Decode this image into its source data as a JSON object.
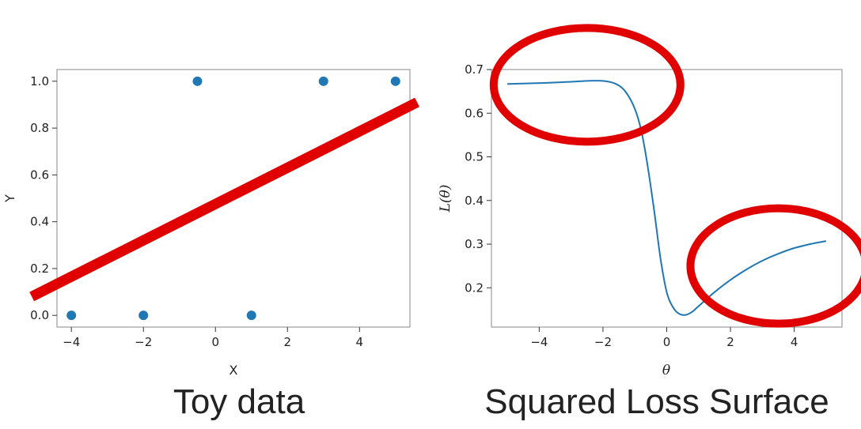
{
  "colors": {
    "series": "#1f77b4",
    "annotation": "#e00000",
    "frame": "#8a8a8a",
    "background": "#ffffff"
  },
  "chart_data": [
    {
      "type": "scatter",
      "caption": "Toy data",
      "xlabel": "X",
      "ylabel": "Y",
      "xlim": [
        -4.4,
        5.4
      ],
      "ylim": [
        -0.05,
        1.05
      ],
      "xticks": [
        -4,
        -2,
        0,
        2,
        4
      ],
      "xtick_labels": [
        "−4",
        "−2",
        "0",
        "2",
        "4"
      ],
      "yticks": [
        0.0,
        0.2,
        0.4,
        0.6,
        0.8,
        1.0
      ],
      "ytick_labels": [
        "0.0",
        "0.2",
        "0.4",
        "0.6",
        "0.8",
        "1.0"
      ],
      "points": [
        {
          "x": -4,
          "y": 0
        },
        {
          "x": -2,
          "y": 0
        },
        {
          "x": -0.5,
          "y": 1
        },
        {
          "x": 1,
          "y": 0
        },
        {
          "x": 3,
          "y": 1
        },
        {
          "x": 5,
          "y": 1
        }
      ],
      "annotation_line": {
        "x": [
          -5.1,
          5.6
        ],
        "y": 0.08,
        "y_end": 0.91
      }
    },
    {
      "type": "line",
      "caption": "Squared Loss Surface",
      "xlabel": "θ",
      "ylabel": "L(θ)",
      "xlim": [
        -5.5,
        5.5
      ],
      "ylim": [
        0.11,
        0.7
      ],
      "xticks": [
        -4,
        -2,
        0,
        2,
        4
      ],
      "xtick_labels": [
        "−4",
        "−2",
        "0",
        "2",
        "4"
      ],
      "yticks": [
        0.2,
        0.3,
        0.4,
        0.5,
        0.6,
        0.7
      ],
      "ytick_labels": [
        "0.2",
        "0.3",
        "0.4",
        "0.5",
        "0.6",
        "0.7"
      ],
      "series": [
        {
          "x": [
            -5.0,
            -4.0,
            -3.0,
            -2.5,
            -2.0,
            -1.6,
            -1.3,
            -1.0,
            -0.8,
            -0.6,
            -0.4,
            -0.2,
            0.0,
            0.2,
            0.4,
            0.6,
            0.8,
            1.0,
            1.5,
            2.0,
            2.5,
            3.0,
            3.5,
            4.0,
            4.5,
            5.0
          ],
          "y": [
            0.667,
            0.669,
            0.672,
            0.674,
            0.674,
            0.667,
            0.65,
            0.61,
            0.56,
            0.48,
            0.38,
            0.27,
            0.19,
            0.155,
            0.14,
            0.138,
            0.145,
            0.158,
            0.19,
            0.218,
            0.242,
            0.262,
            0.278,
            0.291,
            0.3,
            0.307
          ]
        }
      ],
      "annotation_ellipses": [
        {
          "cx": -2.5,
          "cy": 0.665
        },
        {
          "cx": 3.5,
          "cy": 0.25
        }
      ]
    }
  ]
}
